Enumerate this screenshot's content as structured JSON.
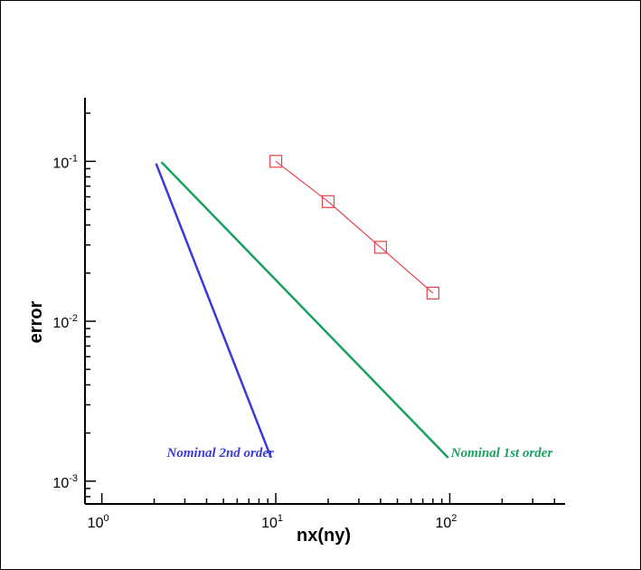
{
  "chart_data": {
    "type": "line",
    "xlabel": "nx(ny)",
    "ylabel": "error",
    "xscale": "log",
    "yscale": "log",
    "xlim": [
      0.8,
      460
    ],
    "ylim": [
      0.00072,
      0.25
    ],
    "grid": false,
    "legend": "none",
    "x_ticks": [
      {
        "base": "10",
        "exp": "0",
        "value": 1
      },
      {
        "base": "10",
        "exp": "1",
        "value": 10
      },
      {
        "base": "10",
        "exp": "2",
        "value": 100
      }
    ],
    "y_ticks": [
      {
        "base": "10",
        "exp": "-1",
        "value": 0.1
      },
      {
        "base": "10",
        "exp": "-2",
        "value": 0.01
      },
      {
        "base": "10",
        "exp": "-3",
        "value": 0.001
      }
    ],
    "series": [
      {
        "color": "#e8424a",
        "marker": "square",
        "x": [
          10,
          20,
          40,
          80
        ],
        "y": [
          0.1,
          0.056,
          0.029,
          0.015
        ]
      },
      {
        "color": "#3a3ad8",
        "marker": "none",
        "x": [
          2.05,
          9.4
        ],
        "y": [
          0.097,
          0.0014
        ],
        "label": "Nominal 2nd order"
      },
      {
        "color": "#1aa060",
        "marker": "none",
        "x": [
          2.2,
          98
        ],
        "y": [
          0.099,
          0.0014
        ],
        "label": "Nominal 1st order"
      }
    ]
  }
}
